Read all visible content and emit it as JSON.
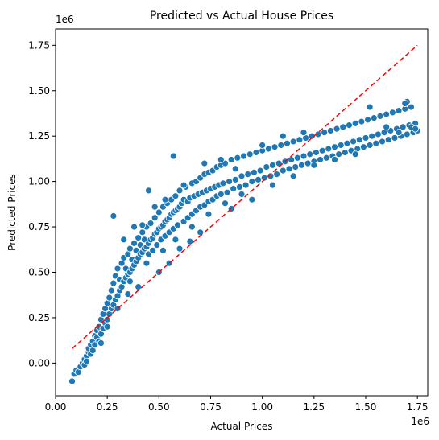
{
  "chart_data": {
    "type": "scatter",
    "title": "Predicted vs Actual House Prices",
    "xlabel": "Actual Prices",
    "ylabel": "Predicted Prices",
    "x_offset_label": "1e6",
    "y_offset_label": "1e6",
    "xlim": [
      0,
      1.8
    ],
    "ylim": [
      -0.18,
      1.84
    ],
    "x_ticks": [
      "0.00",
      "0.25",
      "0.50",
      "0.75",
      "1.00",
      "1.25",
      "1.50",
      "1.75"
    ],
    "x_tick_values": [
      0.0,
      0.25,
      0.5,
      0.75,
      1.0,
      1.25,
      1.5,
      1.75
    ],
    "y_ticks": [
      "0.00",
      "0.25",
      "0.50",
      "0.75",
      "1.00",
      "1.25",
      "1.50",
      "1.75"
    ],
    "y_tick_values": [
      0.0,
      0.25,
      0.5,
      0.75,
      1.0,
      1.25,
      1.5,
      1.75
    ],
    "grid": false,
    "marker_color": "#1f77b4",
    "reference_line": {
      "x": [
        0.08,
        1.75
      ],
      "y": [
        0.08,
        1.75
      ],
      "color": "#ff0000",
      "style": "dashed"
    },
    "series": [
      {
        "points": [
          [
            0.08,
            -0.1
          ],
          [
            0.09,
            -0.06
          ],
          [
            0.1,
            -0.04
          ],
          [
            0.11,
            -0.05
          ],
          [
            0.12,
            -0.02
          ],
          [
            0.13,
            0.0
          ],
          [
            0.14,
            0.02
          ],
          [
            0.14,
            -0.01
          ],
          [
            0.15,
            0.04
          ],
          [
            0.15,
            0.01
          ],
          [
            0.16,
            0.06
          ],
          [
            0.16,
            0.08
          ],
          [
            0.17,
            0.05
          ],
          [
            0.17,
            0.1
          ],
          [
            0.18,
            0.12
          ],
          [
            0.18,
            0.07
          ],
          [
            0.19,
            0.15
          ],
          [
            0.19,
            0.1
          ],
          [
            0.2,
            0.14
          ],
          [
            0.2,
            0.18
          ],
          [
            0.21,
            0.12
          ],
          [
            0.21,
            0.2
          ],
          [
            0.22,
            0.16
          ],
          [
            0.22,
            0.24
          ],
          [
            0.23,
            0.19
          ],
          [
            0.23,
            0.27
          ],
          [
            0.24,
            0.22
          ],
          [
            0.24,
            0.3
          ],
          [
            0.25,
            0.24
          ],
          [
            0.25,
            0.33
          ],
          [
            0.26,
            0.27
          ],
          [
            0.26,
            0.36
          ],
          [
            0.27,
            0.3
          ],
          [
            0.27,
            0.4
          ],
          [
            0.28,
            0.32
          ],
          [
            0.28,
            0.44
          ],
          [
            0.29,
            0.35
          ],
          [
            0.29,
            0.48
          ],
          [
            0.3,
            0.37
          ],
          [
            0.3,
            0.52
          ],
          [
            0.31,
            0.4
          ],
          [
            0.31,
            0.46
          ],
          [
            0.32,
            0.42
          ],
          [
            0.32,
            0.55
          ],
          [
            0.33,
            0.45
          ],
          [
            0.33,
            0.58
          ],
          [
            0.34,
            0.47
          ],
          [
            0.34,
            0.52
          ],
          [
            0.35,
            0.49
          ],
          [
            0.35,
            0.6
          ],
          [
            0.36,
            0.5
          ],
          [
            0.36,
            0.63
          ],
          [
            0.37,
            0.52
          ],
          [
            0.37,
            0.57
          ],
          [
            0.38,
            0.54
          ],
          [
            0.38,
            0.66
          ],
          [
            0.39,
            0.56
          ],
          [
            0.39,
            0.62
          ],
          [
            0.4,
            0.58
          ],
          [
            0.4,
            0.69
          ],
          [
            0.41,
            0.6
          ],
          [
            0.41,
            0.65
          ],
          [
            0.42,
            0.61
          ],
          [
            0.42,
            0.72
          ],
          [
            0.43,
            0.63
          ],
          [
            0.43,
            0.68
          ],
          [
            0.44,
            0.64
          ],
          [
            0.44,
            0.75
          ],
          [
            0.45,
            0.66
          ],
          [
            0.45,
            0.6
          ],
          [
            0.46,
            0.68
          ],
          [
            0.46,
            0.77
          ],
          [
            0.47,
            0.69
          ],
          [
            0.47,
            0.62
          ],
          [
            0.48,
            0.71
          ],
          [
            0.48,
            0.8
          ],
          [
            0.49,
            0.72
          ],
          [
            0.49,
            0.65
          ],
          [
            0.5,
            0.74
          ],
          [
            0.5,
            0.83
          ],
          [
            0.51,
            0.75
          ],
          [
            0.51,
            0.68
          ],
          [
            0.52,
            0.76
          ],
          [
            0.52,
            0.86
          ],
          [
            0.53,
            0.78
          ],
          [
            0.53,
            0.7
          ],
          [
            0.54,
            0.79
          ],
          [
            0.54,
            0.88
          ],
          [
            0.55,
            0.8
          ],
          [
            0.55,
            0.72
          ],
          [
            0.56,
            0.82
          ],
          [
            0.56,
            0.9
          ],
          [
            0.57,
            0.83
          ],
          [
            0.57,
            0.74
          ],
          [
            0.58,
            0.84
          ],
          [
            0.58,
            0.92
          ],
          [
            0.59,
            0.85
          ],
          [
            0.59,
            0.76
          ],
          [
            0.6,
            0.86
          ],
          [
            0.6,
            0.95
          ],
          [
            0.61,
            0.88
          ],
          [
            0.62,
            0.78
          ],
          [
            0.62,
            0.9
          ],
          [
            0.63,
            0.97
          ],
          [
            0.64,
            0.89
          ],
          [
            0.64,
            0.8
          ],
          [
            0.65,
            0.91
          ],
          [
            0.66,
            0.99
          ],
          [
            0.66,
            0.82
          ],
          [
            0.67,
            0.92
          ],
          [
            0.68,
            1.0
          ],
          [
            0.68,
            0.84
          ],
          [
            0.69,
            0.93
          ],
          [
            0.7,
            1.02
          ],
          [
            0.7,
            0.86
          ],
          [
            0.71,
            0.94
          ],
          [
            0.72,
            1.04
          ],
          [
            0.72,
            0.87
          ],
          [
            0.73,
            0.95
          ],
          [
            0.74,
            1.05
          ],
          [
            0.74,
            0.89
          ],
          [
            0.75,
            0.96
          ],
          [
            0.76,
            1.06
          ],
          [
            0.76,
            0.9
          ],
          [
            0.77,
            0.97
          ],
          [
            0.78,
            1.08
          ],
          [
            0.78,
            0.92
          ],
          [
            0.79,
            0.98
          ],
          [
            0.8,
            1.09
          ],
          [
            0.8,
            0.93
          ],
          [
            0.81,
            0.99
          ],
          [
            0.82,
            1.1
          ],
          [
            0.83,
            0.94
          ],
          [
            0.84,
            1.0
          ],
          [
            0.85,
            1.12
          ],
          [
            0.86,
            0.96
          ],
          [
            0.87,
            1.01
          ],
          [
            0.88,
            1.13
          ],
          [
            0.89,
            0.97
          ],
          [
            0.9,
            1.03
          ],
          [
            0.91,
            1.14
          ],
          [
            0.92,
            0.98
          ],
          [
            0.93,
            1.04
          ],
          [
            0.94,
            1.15
          ],
          [
            0.95,
            1.0
          ],
          [
            0.96,
            1.05
          ],
          [
            0.97,
            1.16
          ],
          [
            0.98,
            1.01
          ],
          [
            0.99,
            1.06
          ],
          [
            1.0,
            1.17
          ],
          [
            1.01,
            1.02
          ],
          [
            1.02,
            1.08
          ],
          [
            1.03,
            1.18
          ],
          [
            1.04,
            1.03
          ],
          [
            1.05,
            1.09
          ],
          [
            1.06,
            1.19
          ],
          [
            1.07,
            1.04
          ],
          [
            1.08,
            1.1
          ],
          [
            1.09,
            1.2
          ],
          [
            1.1,
            1.06
          ],
          [
            1.11,
            1.11
          ],
          [
            1.12,
            1.21
          ],
          [
            1.13,
            1.07
          ],
          [
            1.14,
            1.12
          ],
          [
            1.15,
            1.22
          ],
          [
            1.16,
            1.08
          ],
          [
            1.17,
            1.13
          ],
          [
            1.18,
            1.23
          ],
          [
            1.19,
            1.09
          ],
          [
            1.2,
            1.14
          ],
          [
            1.21,
            1.24
          ],
          [
            1.22,
            1.1
          ],
          [
            1.23,
            1.15
          ],
          [
            1.24,
            1.25
          ],
          [
            1.25,
            1.11
          ],
          [
            1.26,
            1.16
          ],
          [
            1.27,
            1.26
          ],
          [
            1.28,
            1.12
          ],
          [
            1.29,
            1.17
          ],
          [
            1.3,
            1.27
          ],
          [
            1.31,
            1.13
          ],
          [
            1.32,
            1.18
          ],
          [
            1.33,
            1.28
          ],
          [
            1.34,
            1.14
          ],
          [
            1.35,
            1.19
          ],
          [
            1.36,
            1.29
          ],
          [
            1.37,
            1.15
          ],
          [
            1.38,
            1.2
          ],
          [
            1.39,
            1.3
          ],
          [
            1.4,
            1.16
          ],
          [
            1.41,
            1.21
          ],
          [
            1.42,
            1.31
          ],
          [
            1.43,
            1.17
          ],
          [
            1.44,
            1.22
          ],
          [
            1.45,
            1.32
          ],
          [
            1.46,
            1.18
          ],
          [
            1.47,
            1.23
          ],
          [
            1.48,
            1.33
          ],
          [
            1.49,
            1.19
          ],
          [
            1.5,
            1.24
          ],
          [
            1.51,
            1.34
          ],
          [
            1.52,
            1.2
          ],
          [
            1.53,
            1.25
          ],
          [
            1.54,
            1.35
          ],
          [
            1.55,
            1.21
          ],
          [
            1.56,
            1.26
          ],
          [
            1.57,
            1.36
          ],
          [
            1.58,
            1.22
          ],
          [
            1.59,
            1.27
          ],
          [
            1.6,
            1.37
          ],
          [
            1.61,
            1.23
          ],
          [
            1.62,
            1.28
          ],
          [
            1.63,
            1.38
          ],
          [
            1.64,
            1.24
          ],
          [
            1.65,
            1.29
          ],
          [
            1.66,
            1.39
          ],
          [
            1.67,
            1.25
          ],
          [
            1.68,
            1.3
          ],
          [
            1.69,
            1.4
          ],
          [
            1.7,
            1.26
          ],
          [
            1.71,
            1.31
          ],
          [
            1.72,
            1.41
          ],
          [
            1.73,
            1.27
          ],
          [
            1.74,
            1.32
          ],
          [
            1.75,
            1.28
          ],
          [
            1.7,
            1.44
          ],
          [
            1.69,
            1.43
          ],
          [
            1.52,
            1.41
          ],
          [
            1.6,
            1.3
          ],
          [
            1.66,
            1.27
          ],
          [
            1.72,
            1.3
          ],
          [
            1.74,
            1.29
          ],
          [
            0.28,
            0.81
          ],
          [
            0.57,
            1.14
          ],
          [
            0.45,
            0.95
          ],
          [
            0.6,
            0.63
          ],
          [
            0.65,
            0.67
          ],
          [
            0.5,
            0.5
          ],
          [
            0.4,
            0.42
          ],
          [
            0.35,
            0.38
          ],
          [
            0.3,
            0.3
          ],
          [
            0.25,
            0.2
          ],
          [
            0.22,
            0.11
          ],
          [
            0.55,
            0.55
          ],
          [
            0.7,
            0.72
          ],
          [
            0.85,
            0.85
          ],
          [
            0.95,
            0.9
          ],
          [
            1.05,
            0.98
          ],
          [
            1.15,
            1.03
          ],
          [
            1.25,
            1.09
          ],
          [
            1.35,
            1.12
          ],
          [
            1.45,
            1.15
          ],
          [
            0.38,
            0.75
          ],
          [
            0.42,
            0.76
          ],
          [
            0.48,
            0.86
          ],
          [
            0.53,
            0.9
          ],
          [
            0.62,
            0.98
          ],
          [
            0.72,
            1.1
          ],
          [
            0.8,
            1.12
          ],
          [
            0.87,
            1.07
          ],
          [
            1.0,
            1.2
          ],
          [
            1.1,
            1.25
          ],
          [
            1.2,
            1.27
          ],
          [
            0.33,
            0.68
          ],
          [
            0.36,
            0.45
          ],
          [
            0.44,
            0.55
          ],
          [
            0.52,
            0.62
          ],
          [
            0.58,
            0.68
          ],
          [
            0.66,
            0.75
          ],
          [
            0.74,
            0.82
          ],
          [
            0.82,
            0.88
          ],
          [
            0.9,
            0.93
          ]
        ]
      }
    ]
  }
}
